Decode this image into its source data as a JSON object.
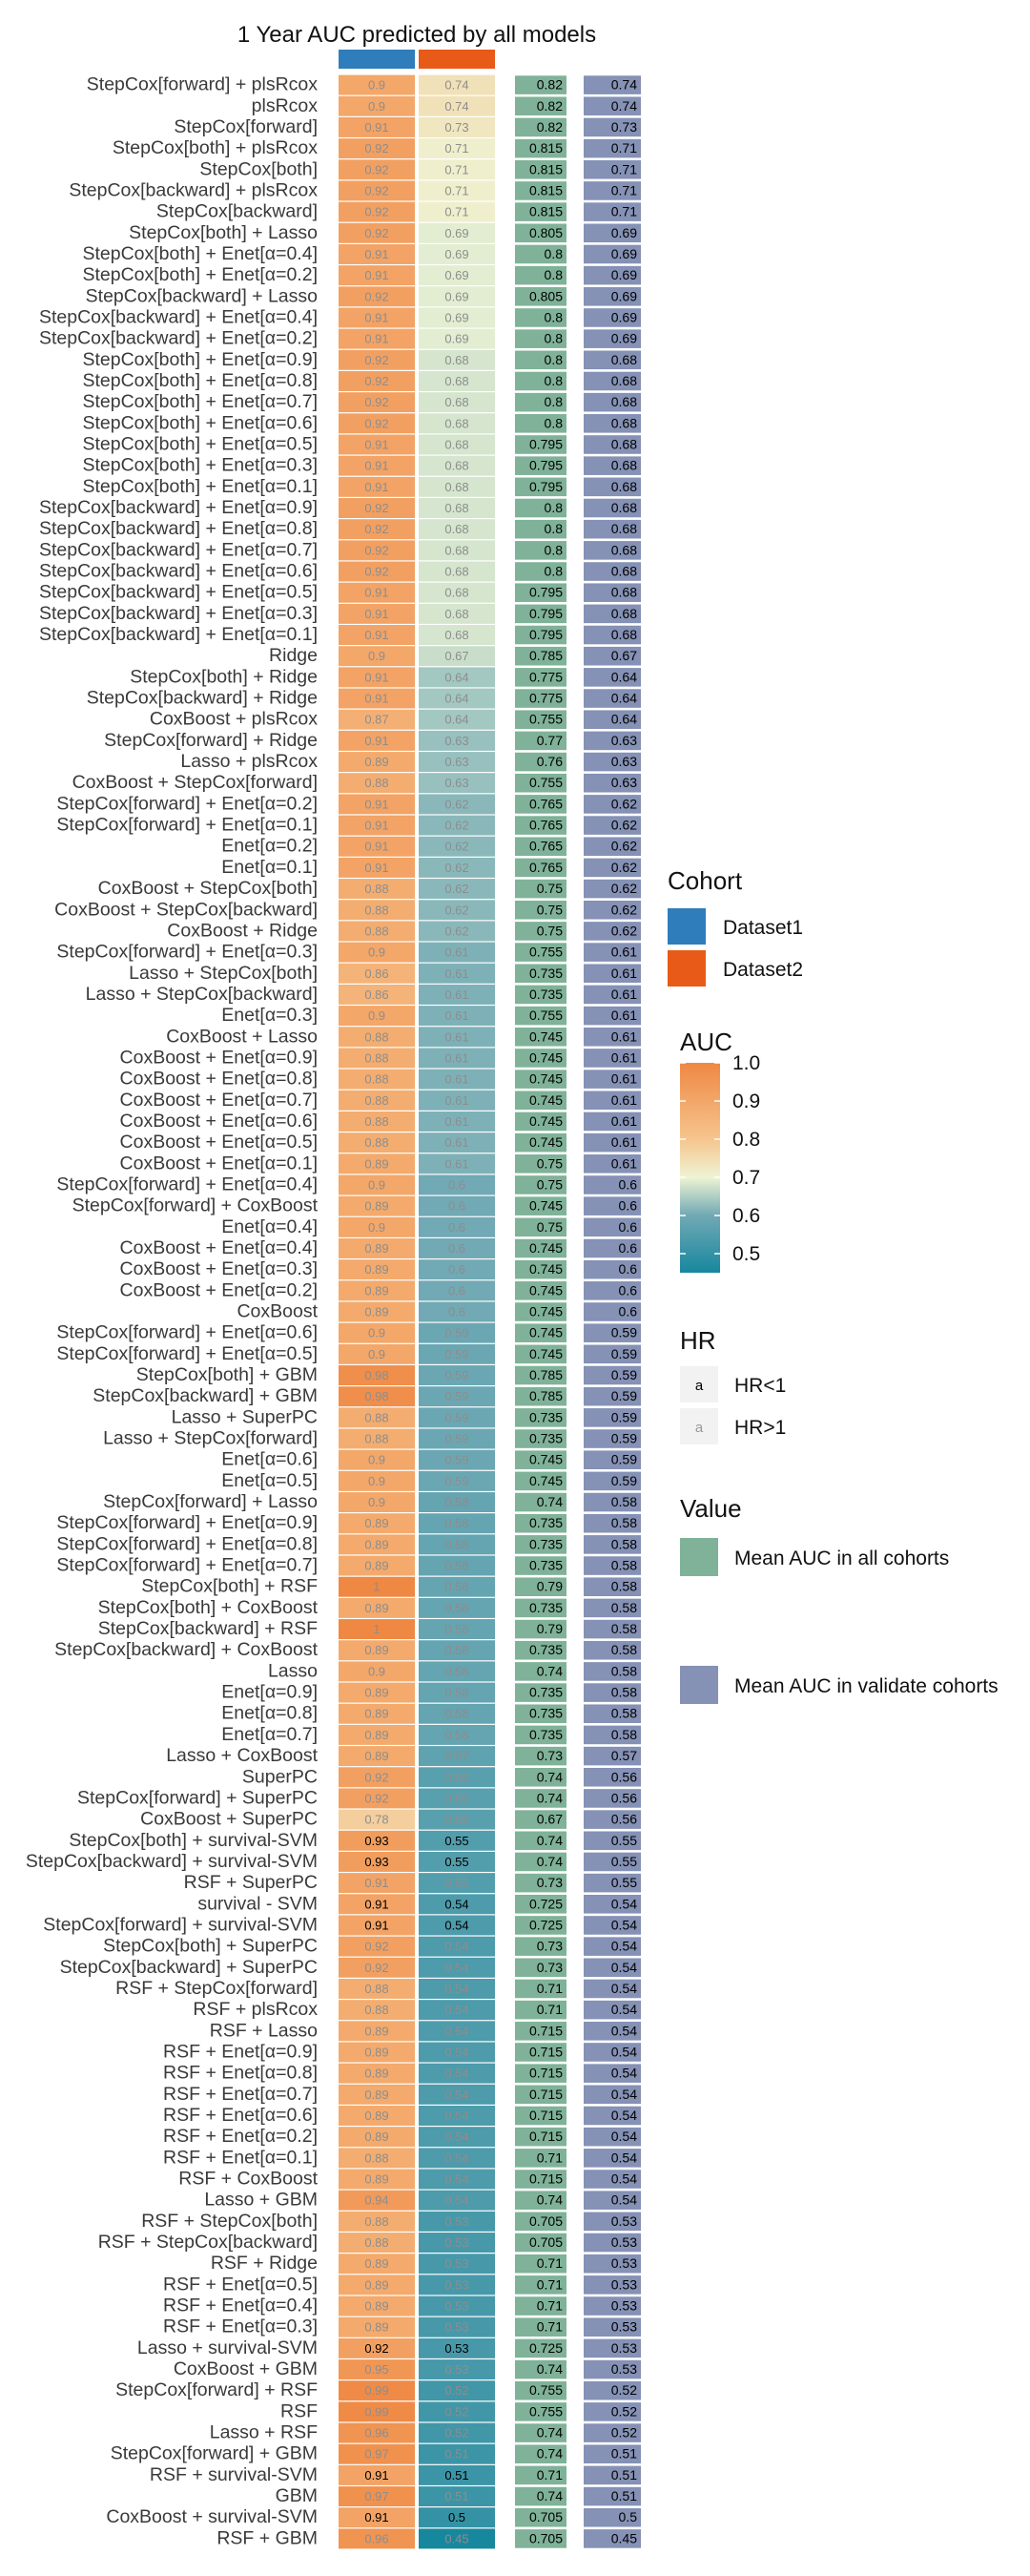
{
  "chart_data": {
    "type": "heatmap",
    "title": "1 Year AUC predicted by all models",
    "cohorts": [
      "Dataset1",
      "Dataset2"
    ],
    "models": [
      "StepCox[forward] + plsRcox",
      "plsRcox",
      "StepCox[forward]",
      "StepCox[both] + plsRcox",
      "StepCox[both]",
      "StepCox[backward] + plsRcox",
      "StepCox[backward]",
      "StepCox[both] + Lasso",
      "StepCox[both] + Enet[α=0.4]",
      "StepCox[both] + Enet[α=0.2]",
      "StepCox[backward] + Lasso",
      "StepCox[backward] + Enet[α=0.4]",
      "StepCox[backward] + Enet[α=0.2]",
      "StepCox[both] + Enet[α=0.9]",
      "StepCox[both] + Enet[α=0.8]",
      "StepCox[both] + Enet[α=0.7]",
      "StepCox[both] + Enet[α=0.6]",
      "StepCox[both] + Enet[α=0.5]",
      "StepCox[both] + Enet[α=0.3]",
      "StepCox[both] + Enet[α=0.1]",
      "StepCox[backward] + Enet[α=0.9]",
      "StepCox[backward] + Enet[α=0.8]",
      "StepCox[backward] + Enet[α=0.7]",
      "StepCox[backward] + Enet[α=0.6]",
      "StepCox[backward] + Enet[α=0.5]",
      "StepCox[backward] + Enet[α=0.3]",
      "StepCox[backward] + Enet[α=0.1]",
      "Ridge",
      "StepCox[both] + Ridge",
      "StepCox[backward] + Ridge",
      "CoxBoost + plsRcox",
      "StepCox[forward] + Ridge",
      "Lasso + plsRcox",
      "CoxBoost + StepCox[forward]",
      "StepCox[forward] + Enet[α=0.2]",
      "StepCox[forward] + Enet[α=0.1]",
      "Enet[α=0.2]",
      "Enet[α=0.1]",
      "CoxBoost + StepCox[both]",
      "CoxBoost + StepCox[backward]",
      "CoxBoost + Ridge",
      "StepCox[forward] + Enet[α=0.3]",
      "Lasso + StepCox[both]",
      "Lasso + StepCox[backward]",
      "Enet[α=0.3]",
      "CoxBoost + Lasso",
      "CoxBoost + Enet[α=0.9]",
      "CoxBoost + Enet[α=0.8]",
      "CoxBoost + Enet[α=0.7]",
      "CoxBoost + Enet[α=0.6]",
      "CoxBoost + Enet[α=0.5]",
      "CoxBoost + Enet[α=0.1]",
      "StepCox[forward] + Enet[α=0.4]",
      "StepCox[forward] + CoxBoost",
      "Enet[α=0.4]",
      "CoxBoost + Enet[α=0.4]",
      "CoxBoost + Enet[α=0.3]",
      "CoxBoost + Enet[α=0.2]",
      "CoxBoost",
      "StepCox[forward] + Enet[α=0.6]",
      "StepCox[forward] + Enet[α=0.5]",
      "StepCox[both] + GBM",
      "StepCox[backward] + GBM",
      "Lasso + SuperPC",
      "Lasso + StepCox[forward]",
      "Enet[α=0.6]",
      "Enet[α=0.5]",
      "StepCox[forward] + Lasso",
      "StepCox[forward] + Enet[α=0.9]",
      "StepCox[forward] + Enet[α=0.8]",
      "StepCox[forward] + Enet[α=0.7]",
      "StepCox[both] + RSF",
      "StepCox[both] + CoxBoost",
      "StepCox[backward] + RSF",
      "StepCox[backward] + CoxBoost",
      "Lasso",
      "Enet[α=0.9]",
      "Enet[α=0.8]",
      "Enet[α=0.7]",
      "Lasso + CoxBoost",
      "SuperPC",
      "StepCox[forward] + SuperPC",
      "CoxBoost + SuperPC",
      "StepCox[both] + survival-SVM",
      "StepCox[backward] + survival-SVM",
      "RSF + SuperPC",
      "survival - SVM",
      "StepCox[forward] + survival-SVM",
      "StepCox[both] + SuperPC",
      "StepCox[backward] + SuperPC",
      "RSF + StepCox[forward]",
      "RSF + plsRcox",
      "RSF + Lasso",
      "RSF + Enet[α=0.9]",
      "RSF + Enet[α=0.8]",
      "RSF + Enet[α=0.7]",
      "RSF + Enet[α=0.6]",
      "RSF + Enet[α=0.2]",
      "RSF + Enet[α=0.1]",
      "RSF + CoxBoost",
      "Lasso + GBM",
      "RSF + StepCox[both]",
      "RSF + StepCox[backward]",
      "RSF + Ridge",
      "RSF + Enet[α=0.5]",
      "RSF + Enet[α=0.4]",
      "RSF + Enet[α=0.3]",
      "Lasso + survival-SVM",
      "CoxBoost + GBM",
      "StepCox[forward] + RSF",
      "RSF",
      "Lasso + RSF",
      "StepCox[forward] + GBM",
      "RSF + survival-SVM",
      "GBM",
      "CoxBoost + survival-SVM",
      "RSF + GBM"
    ],
    "auc_dataset1": [
      0.9,
      0.9,
      0.91,
      0.92,
      0.92,
      0.92,
      0.92,
      0.92,
      0.91,
      0.91,
      0.92,
      0.91,
      0.91,
      0.92,
      0.92,
      0.92,
      0.92,
      0.91,
      0.91,
      0.91,
      0.92,
      0.92,
      0.92,
      0.92,
      0.91,
      0.91,
      0.91,
      0.9,
      0.91,
      0.91,
      0.87,
      0.91,
      0.89,
      0.88,
      0.91,
      0.91,
      0.91,
      0.91,
      0.88,
      0.88,
      0.88,
      0.9,
      0.86,
      0.86,
      0.9,
      0.88,
      0.88,
      0.88,
      0.88,
      0.88,
      0.88,
      0.89,
      0.9,
      0.89,
      0.9,
      0.89,
      0.89,
      0.89,
      0.89,
      0.9,
      0.9,
      0.98,
      0.98,
      0.88,
      0.88,
      0.9,
      0.9,
      0.9,
      0.89,
      0.89,
      0.89,
      1,
      0.89,
      1,
      0.89,
      0.9,
      0.89,
      0.89,
      0.89,
      0.89,
      0.92,
      0.92,
      0.78,
      0.93,
      0.93,
      0.91,
      0.91,
      0.91,
      0.92,
      0.92,
      0.88,
      0.88,
      0.89,
      0.89,
      0.89,
      0.89,
      0.89,
      0.89,
      0.88,
      0.89,
      0.94,
      0.88,
      0.88,
      0.89,
      0.89,
      0.89,
      0.89,
      0.92,
      0.95,
      0.99,
      0.99,
      0.96,
      0.97,
      0.91,
      0.97,
      0.91,
      0.96
    ],
    "auc_dataset2": [
      0.74,
      0.74,
      0.73,
      0.71,
      0.71,
      0.71,
      0.71,
      0.69,
      0.69,
      0.69,
      0.69,
      0.69,
      0.69,
      0.68,
      0.68,
      0.68,
      0.68,
      0.68,
      0.68,
      0.68,
      0.68,
      0.68,
      0.68,
      0.68,
      0.68,
      0.68,
      0.68,
      0.67,
      0.64,
      0.64,
      0.64,
      0.63,
      0.63,
      0.63,
      0.62,
      0.62,
      0.62,
      0.62,
      0.62,
      0.62,
      0.62,
      0.61,
      0.61,
      0.61,
      0.61,
      0.61,
      0.61,
      0.61,
      0.61,
      0.61,
      0.61,
      0.61,
      0.6,
      0.6,
      0.6,
      0.6,
      0.6,
      0.6,
      0.6,
      0.59,
      0.59,
      0.59,
      0.59,
      0.59,
      0.59,
      0.59,
      0.59,
      0.58,
      0.58,
      0.58,
      0.58,
      0.58,
      0.58,
      0.58,
      0.58,
      0.58,
      0.58,
      0.58,
      0.58,
      0.57,
      0.56,
      0.56,
      0.56,
      0.55,
      0.55,
      0.55,
      0.54,
      0.54,
      0.54,
      0.54,
      0.54,
      0.54,
      0.54,
      0.54,
      0.54,
      0.54,
      0.54,
      0.54,
      0.54,
      0.54,
      0.54,
      0.53,
      0.53,
      0.53,
      0.53,
      0.53,
      0.53,
      0.53,
      0.53,
      0.52,
      0.52,
      0.52,
      0.51,
      0.51,
      0.51,
      0.5,
      0.45
    ],
    "hr_dataset1": [
      ">1",
      ">1",
      ">1",
      ">1",
      ">1",
      ">1",
      ">1",
      ">1",
      ">1",
      ">1",
      ">1",
      ">1",
      ">1",
      ">1",
      ">1",
      ">1",
      ">1",
      ">1",
      ">1",
      ">1",
      ">1",
      ">1",
      ">1",
      ">1",
      ">1",
      ">1",
      ">1",
      ">1",
      ">1",
      ">1",
      ">1",
      ">1",
      ">1",
      ">1",
      ">1",
      ">1",
      ">1",
      ">1",
      ">1",
      ">1",
      ">1",
      ">1",
      ">1",
      ">1",
      ">1",
      ">1",
      ">1",
      ">1",
      ">1",
      ">1",
      ">1",
      ">1",
      ">1",
      ">1",
      ">1",
      ">1",
      ">1",
      ">1",
      ">1",
      ">1",
      ">1",
      ">1",
      ">1",
      ">1",
      ">1",
      ">1",
      ">1",
      ">1",
      ">1",
      ">1",
      ">1",
      ">1",
      ">1",
      ">1",
      ">1",
      ">1",
      ">1",
      ">1",
      ">1",
      ">1",
      ">1",
      ">1",
      ">1",
      "<1",
      "<1",
      ">1",
      "<1",
      "<1",
      ">1",
      ">1",
      ">1",
      ">1",
      ">1",
      ">1",
      ">1",
      ">1",
      ">1",
      ">1",
      ">1",
      ">1",
      ">1",
      ">1",
      ">1",
      ">1",
      ">1",
      ">1",
      ">1",
      "<1",
      ">1",
      ">1",
      ">1",
      ">1",
      ">1",
      "<1",
      ">1",
      "<1",
      ">1"
    ],
    "hr_dataset2": [
      ">1",
      ">1",
      ">1",
      ">1",
      ">1",
      ">1",
      ">1",
      ">1",
      ">1",
      ">1",
      ">1",
      ">1",
      ">1",
      ">1",
      ">1",
      ">1",
      ">1",
      ">1",
      ">1",
      ">1",
      ">1",
      ">1",
      ">1",
      ">1",
      ">1",
      ">1",
      ">1",
      ">1",
      ">1",
      ">1",
      ">1",
      ">1",
      ">1",
      ">1",
      ">1",
      ">1",
      ">1",
      ">1",
      ">1",
      ">1",
      ">1",
      ">1",
      ">1",
      ">1",
      ">1",
      ">1",
      ">1",
      ">1",
      ">1",
      ">1",
      ">1",
      ">1",
      ">1",
      ">1",
      ">1",
      ">1",
      ">1",
      ">1",
      ">1",
      ">1",
      ">1",
      ">1",
      ">1",
      ">1",
      ">1",
      ">1",
      ">1",
      ">1",
      ">1",
      ">1",
      ">1",
      ">1",
      ">1",
      ">1",
      ">1",
      ">1",
      ">1",
      ">1",
      ">1",
      ">1",
      ">1",
      ">1",
      ">1",
      "<1",
      "<1",
      ">1",
      "<1",
      "<1",
      ">1",
      ">1",
      ">1",
      ">1",
      ">1",
      ">1",
      ">1",
      ">1",
      ">1",
      ">1",
      ">1",
      ">1",
      ">1",
      ">1",
      ">1",
      ">1",
      ">1",
      ">1",
      ">1",
      "<1",
      ">1",
      ">1",
      ">1",
      ">1",
      ">1",
      "<1",
      ">1",
      "<1",
      ">1"
    ],
    "mean_auc_all": [
      0.82,
      0.82,
      0.82,
      0.815,
      0.815,
      0.815,
      0.815,
      0.805,
      0.8,
      0.8,
      0.805,
      0.8,
      0.8,
      0.8,
      0.8,
      0.8,
      0.8,
      0.795,
      0.795,
      0.795,
      0.8,
      0.8,
      0.8,
      0.8,
      0.795,
      0.795,
      0.795,
      0.785,
      0.775,
      0.775,
      0.755,
      0.77,
      0.76,
      0.755,
      0.765,
      0.765,
      0.765,
      0.765,
      0.75,
      0.75,
      0.75,
      0.755,
      0.735,
      0.735,
      0.755,
      0.745,
      0.745,
      0.745,
      0.745,
      0.745,
      0.745,
      0.75,
      0.75,
      0.745,
      0.75,
      0.745,
      0.745,
      0.745,
      0.745,
      0.745,
      0.745,
      0.785,
      0.785,
      0.735,
      0.735,
      0.745,
      0.745,
      0.74,
      0.735,
      0.735,
      0.735,
      0.79,
      0.735,
      0.79,
      0.735,
      0.74,
      0.735,
      0.735,
      0.735,
      0.73,
      0.74,
      0.74,
      0.67,
      0.74,
      0.74,
      0.73,
      0.725,
      0.725,
      0.73,
      0.73,
      0.71,
      0.71,
      0.715,
      0.715,
      0.715,
      0.715,
      0.715,
      0.715,
      0.71,
      0.715,
      0.74,
      0.705,
      0.705,
      0.71,
      0.71,
      0.71,
      0.71,
      0.725,
      0.74,
      0.755,
      0.755,
      0.74,
      0.74,
      0.71,
      0.74,
      0.705,
      0.705
    ],
    "mean_auc_validate": [
      0.74,
      0.74,
      0.73,
      0.71,
      0.71,
      0.71,
      0.71,
      0.69,
      0.69,
      0.69,
      0.69,
      0.69,
      0.69,
      0.68,
      0.68,
      0.68,
      0.68,
      0.68,
      0.68,
      0.68,
      0.68,
      0.68,
      0.68,
      0.68,
      0.68,
      0.68,
      0.68,
      0.67,
      0.64,
      0.64,
      0.64,
      0.63,
      0.63,
      0.63,
      0.62,
      0.62,
      0.62,
      0.62,
      0.62,
      0.62,
      0.62,
      0.61,
      0.61,
      0.61,
      0.61,
      0.61,
      0.61,
      0.61,
      0.61,
      0.61,
      0.61,
      0.61,
      0.6,
      0.6,
      0.6,
      0.6,
      0.6,
      0.6,
      0.6,
      0.59,
      0.59,
      0.59,
      0.59,
      0.59,
      0.59,
      0.59,
      0.59,
      0.58,
      0.58,
      0.58,
      0.58,
      0.58,
      0.58,
      0.58,
      0.58,
      0.58,
      0.58,
      0.58,
      0.58,
      0.57,
      0.56,
      0.56,
      0.56,
      0.55,
      0.55,
      0.55,
      0.54,
      0.54,
      0.54,
      0.54,
      0.54,
      0.54,
      0.54,
      0.54,
      0.54,
      0.54,
      0.54,
      0.54,
      0.54,
      0.54,
      0.54,
      0.53,
      0.53,
      0.53,
      0.53,
      0.53,
      0.53,
      0.53,
      0.53,
      0.52,
      0.52,
      0.52,
      0.51,
      0.51,
      0.51,
      0.5,
      0.45
    ],
    "color_scale": {
      "min": 0.45,
      "max": 1.0,
      "stops": [
        {
          "value": 0.45,
          "color": "#17879e"
        },
        {
          "value": 0.6,
          "color": "#71a9b4"
        },
        {
          "value": 0.7,
          "color": "#eef4d4"
        },
        {
          "value": 0.8,
          "color": "#f6c58e"
        },
        {
          "value": 1.0,
          "color": "#ef8843"
        }
      ]
    },
    "legend_placement": "right"
  },
  "legend": {
    "cohort_title": "Cohort",
    "cohort_items": [
      {
        "label": "Dataset1",
        "color": "#2f7dbb"
      },
      {
        "label": "Dataset2",
        "color": "#e85a18"
      }
    ],
    "auc_title": "AUC",
    "auc_ticks": [
      "1.0",
      "0.9",
      "0.8",
      "0.7",
      "0.6",
      "0.5"
    ],
    "auc_tick_values": [
      1.0,
      0.9,
      0.8,
      0.7,
      0.6,
      0.5
    ],
    "hr_title": "HR",
    "hr_items": [
      {
        "label": "HR<1",
        "glyph": "a",
        "text_color": "#000000"
      },
      {
        "label": "HR>1",
        "glyph": "a",
        "text_color": "#9a9a9a"
      }
    ],
    "value_title": "Value",
    "value_items": [
      {
        "label": "Mean AUC in all cohorts",
        "color": "#7fb298"
      },
      {
        "label": "Mean AUC in validate cohorts",
        "color": "#8591b5"
      }
    ]
  }
}
